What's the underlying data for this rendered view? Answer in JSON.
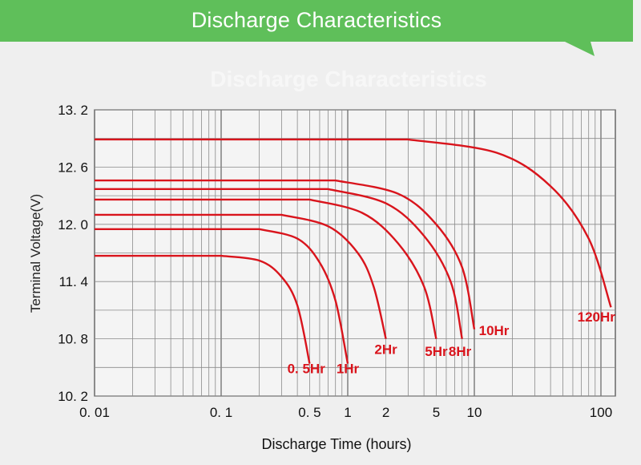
{
  "header": {
    "title": "Discharge Characteristics",
    "ghost_title": "Discharge Characteristics",
    "banner_color": "#5fbf5a"
  },
  "chart_data": {
    "type": "line",
    "xlabel": "Discharge Time (hours)",
    "ylabel": "Terminal Voltage(V)",
    "x_scale": "log",
    "xlim": [
      0.01,
      130
    ],
    "ylim": [
      10.2,
      13.2
    ],
    "x_ticks": [
      {
        "value": 0.01,
        "label": "0. 01"
      },
      {
        "value": 0.1,
        "label": "0. 1"
      },
      {
        "value": 0.5,
        "label": "0. 5"
      },
      {
        "value": 1,
        "label": "1"
      },
      {
        "value": 2,
        "label": "2"
      },
      {
        "value": 5,
        "label": "5"
      },
      {
        "value": 10,
        "label": "10"
      },
      {
        "value": 100,
        "label": "100"
      }
    ],
    "y_ticks": [
      {
        "value": 13.2,
        "label": "13. 2"
      },
      {
        "value": 12.6,
        "label": "12. 6"
      },
      {
        "value": 12.0,
        "label": "12. 0"
      },
      {
        "value": 11.4,
        "label": "11. 4"
      },
      {
        "value": 10.8,
        "label": "10. 8"
      },
      {
        "value": 10.2,
        "label": "10. 2"
      }
    ],
    "grid": true,
    "line_color": "#d9141c",
    "series": [
      {
        "name": "0. 5Hr",
        "x": [
          0.01,
          0.1,
          0.2,
          0.3,
          0.4,
          0.5
        ],
        "y": [
          11.67,
          11.67,
          11.62,
          11.45,
          11.15,
          10.54
        ]
      },
      {
        "name": "1Hr",
        "x": [
          0.01,
          0.2,
          0.4,
          0.6,
          0.8,
          1.0
        ],
        "y": [
          11.95,
          11.95,
          11.85,
          11.6,
          11.2,
          10.54
        ]
      },
      {
        "name": "2Hr",
        "x": [
          0.01,
          0.3,
          0.7,
          1.2,
          1.6,
          2.0
        ],
        "y": [
          12.1,
          12.1,
          11.98,
          11.7,
          11.35,
          10.8
        ]
      },
      {
        "name": "5Hr",
        "x": [
          0.01,
          0.5,
          1.3,
          2.5,
          4.0,
          5.0
        ],
        "y": [
          12.26,
          12.26,
          12.12,
          11.8,
          11.35,
          10.8
        ]
      },
      {
        "name": "8Hr",
        "x": [
          0.01,
          0.7,
          2.0,
          4.0,
          6.5,
          8.0
        ],
        "y": [
          12.37,
          12.37,
          12.22,
          11.88,
          11.4,
          10.8
        ]
      },
      {
        "name": "10Hr",
        "x": [
          0.01,
          0.8,
          2.5,
          5.0,
          8.0,
          10.0
        ],
        "y": [
          12.46,
          12.46,
          12.32,
          12.0,
          11.55,
          10.9
        ]
      },
      {
        "name": "120Hr",
        "x": [
          0.01,
          3.0,
          15.0,
          40.0,
          80.0,
          120.0
        ],
        "y": [
          12.89,
          12.89,
          12.75,
          12.4,
          11.85,
          11.13
        ]
      }
    ],
    "labels": [
      {
        "text": "0. 5Hr",
        "x": 0.47,
        "y": 10.44
      },
      {
        "text": "1Hr",
        "x": 1.0,
        "y": 10.44
      },
      {
        "text": "2Hr",
        "x": 2.0,
        "y": 10.64
      },
      {
        "text": "5Hr",
        "x": 5.0,
        "y": 10.62
      },
      {
        "text": "8Hr",
        "x": 7.7,
        "y": 10.62
      },
      {
        "text": "10Hr",
        "x": 14.3,
        "y": 10.84
      },
      {
        "text": "120Hr",
        "x": 92.0,
        "y": 10.98
      }
    ]
  }
}
